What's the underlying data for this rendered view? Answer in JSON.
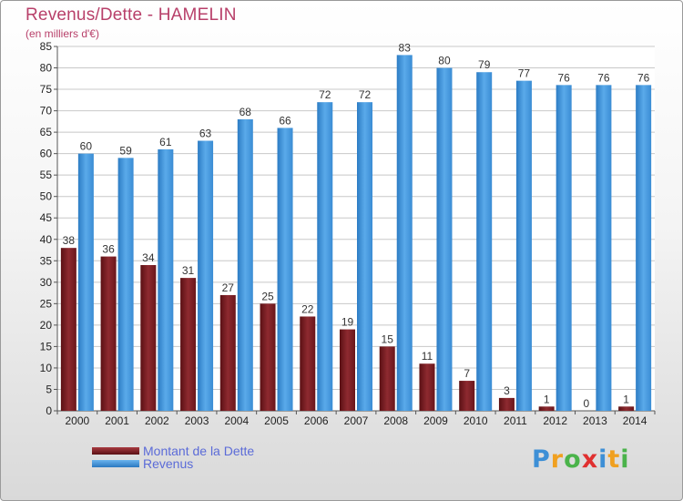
{
  "chart_data": {
    "type": "bar",
    "title": "Revenus/Dette - HAMELIN",
    "subtitle": "(en milliers d'€)",
    "categories": [
      "2000",
      "2001",
      "2002",
      "2003",
      "2004",
      "2005",
      "2006",
      "2007",
      "2008",
      "2009",
      "2010",
      "2011",
      "2012",
      "2013",
      "2014"
    ],
    "series": [
      {
        "name": "Montant de la Dette",
        "color": "#7a1d22",
        "values": [
          38,
          36,
          34,
          31,
          27,
          25,
          22,
          19,
          15,
          11,
          7,
          3,
          1,
          0,
          1
        ]
      },
      {
        "name": "Revenus",
        "color": "#3d8fd6",
        "values": [
          60,
          59,
          61,
          63,
          68,
          66,
          72,
          72,
          83,
          80,
          79,
          77,
          76,
          76,
          76
        ]
      }
    ],
    "ylim": [
      0,
      85
    ],
    "yticks": [
      0,
      5,
      10,
      15,
      20,
      25,
      30,
      35,
      40,
      45,
      50,
      55,
      60,
      65,
      70,
      75,
      80,
      85
    ],
    "grid": true,
    "legend_position": "bottom-left"
  },
  "logo": {
    "text": "Proxiti",
    "letters": [
      "P",
      "r",
      "o",
      "x",
      "i",
      "t",
      "i"
    ]
  }
}
